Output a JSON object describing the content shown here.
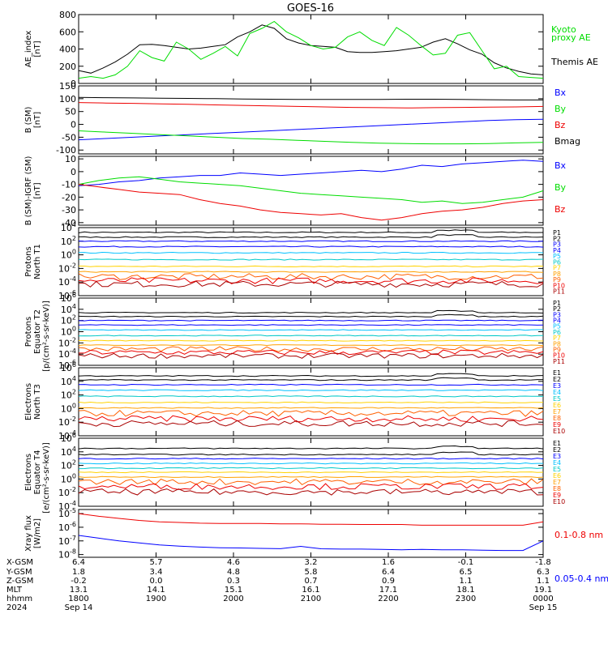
{
  "title": "GOES-16",
  "colors": {
    "black": "#000000",
    "blue": "#0000ff",
    "green": "#00dd00",
    "red": "#ee0000"
  },
  "chart_data": [
    {
      "type": "line",
      "ylabel": "AE_index [nT]",
      "yticks": [
        "800",
        "600",
        "400",
        "200",
        "0"
      ],
      "ylim": [
        0,
        800
      ],
      "series": [
        {
          "name": "Themis AE",
          "color": "#000000",
          "values": [
            150,
            120,
            180,
            250,
            340,
            450,
            455,
            440,
            420,
            400,
            410,
            430,
            450,
            540,
            600,
            680,
            640,
            520,
            470,
            440,
            430,
            420,
            370,
            360,
            360,
            370,
            380,
            400,
            420,
            480,
            520,
            460,
            390,
            340,
            240,
            180,
            140,
            110,
            100
          ]
        },
        {
          "name": "Kyoto proxy AE",
          "color": "#00dd00",
          "values": [
            60,
            80,
            60,
            100,
            200,
            380,
            300,
            260,
            480,
            400,
            280,
            350,
            430,
            320,
            580,
            640,
            720,
            600,
            530,
            440,
            400,
            420,
            540,
            600,
            500,
            440,
            650,
            560,
            440,
            330,
            350,
            560,
            590,
            380,
            170,
            200,
            80,
            70,
            60
          ]
        }
      ],
      "legend": [
        {
          "label": "Kyoto",
          "color": "#00dd00"
        },
        {
          "label": "proxy AE",
          "color": "#00dd00"
        },
        {
          "label": "Themis AE",
          "color": "#000000"
        }
      ]
    },
    {
      "type": "line",
      "ylabel": "B (SM) [nT]",
      "yticks": [
        "150",
        "100",
        "50",
        "0",
        "-50",
        "-100"
      ],
      "ylim": [
        -115,
        150
      ],
      "series": [
        {
          "name": "Bx",
          "color": "#0000ff",
          "values": [
            -60,
            -55,
            -50,
            -45,
            -40,
            -35,
            -30,
            -25,
            -20,
            -15,
            -10,
            -5,
            0,
            5,
            10,
            15,
            18,
            20
          ]
        },
        {
          "name": "By",
          "color": "#00dd00",
          "values": [
            -25,
            -30,
            -35,
            -40,
            -45,
            -50,
            -55,
            -58,
            -62,
            -66,
            -70,
            -73,
            -75,
            -76,
            -76,
            -75,
            -72,
            -70
          ]
        },
        {
          "name": "Bz",
          "color": "#ee0000",
          "values": [
            85,
            83,
            82,
            80,
            78,
            76,
            74,
            72,
            70,
            68,
            66,
            65,
            64,
            65,
            66,
            67,
            68,
            70
          ]
        },
        {
          "name": "Bmag",
          "color": "#000000",
          "values": [
            105,
            104,
            103,
            102,
            101,
            100,
            99,
            98,
            97,
            97,
            97,
            97,
            98,
            98,
            97,
            96,
            95,
            95
          ]
        }
      ],
      "legend": [
        {
          "label": "Bx",
          "color": "#0000ff"
        },
        {
          "label": "By",
          "color": "#00dd00"
        },
        {
          "label": "Bz",
          "color": "#ee0000"
        },
        {
          "label": "Bmag",
          "color": "#000000"
        }
      ]
    },
    {
      "type": "line",
      "ylabel": "B (SM)-IGRF (SM) [nT]",
      "yticks": [
        "10",
        "0",
        "-10",
        "-20",
        "-30",
        "-40"
      ],
      "ylim": [
        -42,
        12
      ],
      "series": [
        {
          "name": "Bx",
          "color": "#0000ff",
          "values": [
            -11,
            -10,
            -8,
            -7,
            -5,
            -4,
            -3,
            -3,
            -1,
            -2,
            -3,
            -2,
            -1,
            0,
            1,
            0,
            2,
            5,
            4,
            6,
            7,
            8,
            9,
            8
          ]
        },
        {
          "name": "By",
          "color": "#00dd00",
          "values": [
            -10,
            -7,
            -5,
            -4,
            -6,
            -8,
            -9,
            -10,
            -11,
            -13,
            -15,
            -17,
            -18,
            -19,
            -20,
            -21,
            -22,
            -24,
            -23,
            -25,
            -24,
            -22,
            -20,
            -15
          ]
        },
        {
          "name": "Bz",
          "color": "#ee0000",
          "values": [
            -10,
            -12,
            -14,
            -16,
            -17,
            -18,
            -22,
            -25,
            -27,
            -30,
            -32,
            -33,
            -34,
            -33,
            -36,
            -38,
            -36,
            -33,
            -31,
            -30,
            -28,
            -25,
            -23,
            -22
          ]
        }
      ],
      "legend": [
        {
          "label": "Bx",
          "color": "#0000ff"
        },
        {
          "label": "By",
          "color": "#00dd00"
        },
        {
          "label": "Bz",
          "color": "#ee0000"
        }
      ]
    },
    {
      "type": "line",
      "scale": "log",
      "ylabel": "Protons North T1",
      "yticks": [
        "10^4",
        "10^2",
        "10^0",
        "10^-2",
        "10^-4",
        "10^-6"
      ],
      "ylim": [
        -6,
        4
      ],
      "channels": [
        "P1",
        "P2",
        "P3",
        "P4",
        "P5",
        "P6",
        "P7",
        "P8",
        "P9",
        "P10",
        "P11"
      ],
      "channel_colors": [
        "#000000",
        "#000000",
        "#0000ff",
        "#0000ff",
        "#00c0ff",
        "#00c8c8",
        "#ffd200",
        "#ffa000",
        "#ff6000",
        "#ee0000",
        "#aa0000"
      ],
      "levels": [
        3.3,
        2.6,
        2.0,
        1.2,
        0.3,
        -0.7,
        -1.7,
        -2.5,
        -3.2,
        -3.8,
        -4.3
      ]
    },
    {
      "type": "line",
      "scale": "log",
      "ylabel": "Protons Equator T2",
      "yticks": [
        "10^6",
        "10^4",
        "10^2",
        "10^0",
        "10^-2",
        "10^-4",
        "10^-6"
      ],
      "ylim": [
        -6,
        6
      ],
      "channels": [
        "P1",
        "P2",
        "P3",
        "P4",
        "P5",
        "P6",
        "P7",
        "P8",
        "P9",
        "P10",
        "P11"
      ],
      "channel_colors": [
        "#000000",
        "#000000",
        "#0000ff",
        "#0000ff",
        "#00c0ff",
        "#00c8c8",
        "#ffd200",
        "#ffa000",
        "#ff6000",
        "#ee0000",
        "#aa0000"
      ],
      "levels": [
        3.4,
        2.7,
        2.0,
        1.2,
        0.3,
        -0.7,
        -1.6,
        -2.4,
        -3.1,
        -3.7,
        -4.3
      ]
    },
    {
      "type": "line",
      "scale": "log",
      "ylabel": "Electrons North T3",
      "yticks": [
        "10^6",
        "10^4",
        "10^2",
        "10^0",
        "10^-2",
        "10^-4"
      ],
      "ylim": [
        -4,
        6
      ],
      "channels": [
        "E1",
        "E2",
        "E3",
        "E4",
        "E5",
        "E6",
        "E7",
        "E8",
        "E9",
        "E10"
      ],
      "channel_colors": [
        "#000000",
        "#000000",
        "#0000ff",
        "#00c0ff",
        "#00c8c8",
        "#ffd200",
        "#ffa000",
        "#ff6000",
        "#ee0000",
        "#aa0000"
      ],
      "levels": [
        4.8,
        4.2,
        3.5,
        2.7,
        1.8,
        0.9,
        0.1,
        -0.7,
        -1.5,
        -2.2
      ]
    },
    {
      "type": "line",
      "scale": "log",
      "ylabel": "Electrons Equator T4",
      "yticks": [
        "10^6",
        "10^4",
        "10^2",
        "10^0",
        "10^-2",
        "10^-4"
      ],
      "ylim": [
        -4,
        6
      ],
      "channels": [
        "E1",
        "E2",
        "E3",
        "E4",
        "E5",
        "E6",
        "E7",
        "E8",
        "E9",
        "E10"
      ],
      "channel_colors": [
        "#000000",
        "#000000",
        "#0000ff",
        "#00c0ff",
        "#00c8c8",
        "#ffd200",
        "#ffa000",
        "#ff6000",
        "#ee0000",
        "#aa0000"
      ],
      "levels": [
        4.5,
        3.6,
        3.0,
        2.3,
        1.6,
        1.0,
        0.3,
        -0.4,
        -1.1,
        -1.9
      ]
    },
    {
      "type": "line",
      "scale": "log",
      "ylabel": "Xray flux [W/m2]",
      "yticks": [
        "10^-5",
        "10^-6",
        "10^-7",
        "10^-8"
      ],
      "ylim": [
        -8.2,
        -4.7
      ],
      "series": [
        {
          "name": "0.1-0.8 nm",
          "color": "#ee0000",
          "values": [
            -5.0,
            -5.2,
            -5.35,
            -5.5,
            -5.6,
            -5.65,
            -5.7,
            -5.72,
            -5.72,
            -5.72,
            -5.75,
            -5.75,
            -5.78,
            -5.78,
            -5.8,
            -5.8,
            -5.8,
            -5.85,
            -5.85,
            -5.85,
            -5.85,
            -5.85,
            -5.85,
            -5.6
          ]
        },
        {
          "name": "0.05-0.4 nm",
          "color": "#0000ff",
          "values": [
            -6.6,
            -6.8,
            -7.0,
            -7.15,
            -7.3,
            -7.38,
            -7.45,
            -7.5,
            -7.52,
            -7.55,
            -7.57,
            -7.4,
            -7.58,
            -7.6,
            -7.6,
            -7.62,
            -7.65,
            -7.62,
            -7.65,
            -7.65,
            -7.68,
            -7.7,
            -7.7,
            -7.0
          ]
        }
      ],
      "legend": [
        {
          "label": "0.1-0.8 nm",
          "color": "#ee0000"
        },
        {
          "label": "0.05-0.4 nm",
          "color": "#0000ff"
        }
      ]
    }
  ],
  "unit_labels": {
    "protons": "[p/(cm²-s-sr-keV)]",
    "electrons": "[e/(cm²-s-sr-keV)]"
  },
  "ephemeris": {
    "row_labels": [
      "X-GSM",
      "Y-GSM",
      "Z-GSM",
      "MLT",
      "hhmm",
      "2024"
    ],
    "columns": [
      [
        "6.4",
        "1.8",
        "-0.2",
        "13.1",
        "1800",
        "Sep 14"
      ],
      [
        "5.7",
        "3.4",
        "0.0",
        "14.1",
        "1900",
        ""
      ],
      [
        "4.6",
        "4.8",
        "0.3",
        "15.1",
        "2000",
        ""
      ],
      [
        "3.2",
        "5.8",
        "0.7",
        "16.1",
        "2100",
        ""
      ],
      [
        "1.6",
        "6.4",
        "0.9",
        "17.1",
        "2200",
        ""
      ],
      [
        "-0.1",
        "6.5",
        "1.1",
        "18.1",
        "2300",
        ""
      ],
      [
        "-1.8",
        "6.3",
        "1.1",
        "19.1",
        "0000",
        "Sep 15"
      ]
    ]
  }
}
